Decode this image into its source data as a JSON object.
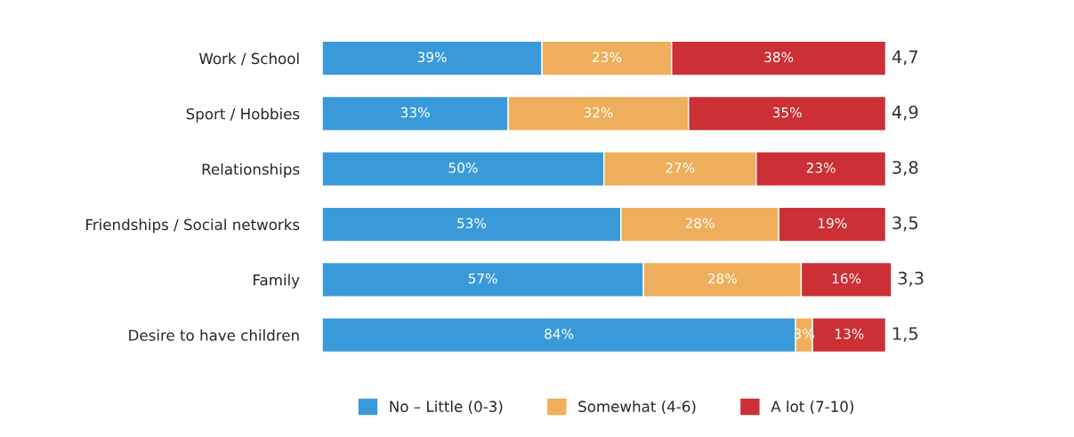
{
  "chart_data": {
    "type": "bar",
    "orientation": "horizontal",
    "stacked": true,
    "legend": "bottom",
    "grid": false,
    "categories": [
      "Work / School",
      "Sport / Hobbies",
      "Relationships",
      "Friendships / Social networks",
      "Family",
      "Desire to have children"
    ],
    "series": [
      {
        "name": "No – Little (0-3)",
        "color": "#3a9ad9",
        "values": [
          39,
          33,
          50,
          53,
          57,
          84
        ],
        "value_labels": [
          "39%",
          "33%",
          "50%",
          "53%",
          "57%",
          "84%"
        ]
      },
      {
        "name": "Somewhat (4-6)",
        "color": "#eeae5c",
        "values": [
          23,
          32,
          27,
          28,
          28,
          3
        ],
        "value_labels": [
          "23%",
          "32%",
          "27%",
          "28%",
          "28%",
          "3%"
        ]
      },
      {
        "name": "A lot (7-10)",
        "color": "#cc2f35",
        "values": [
          38,
          35,
          23,
          19,
          16,
          13
        ],
        "value_labels": [
          "38%",
          "35%",
          "23%",
          "19%",
          "16%",
          "13%"
        ]
      }
    ],
    "annotations": [
      "4,7",
      "4,9",
      "3,8",
      "3,5",
      "3,3",
      "1,5"
    ]
  }
}
